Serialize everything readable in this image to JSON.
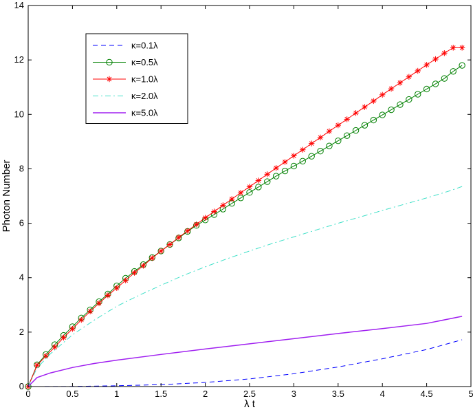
{
  "chart_data": {
    "type": "line",
    "title": "",
    "xlabel": "λ t",
    "ylabel": "Photon Number",
    "xlim": [
      0,
      5
    ],
    "ylim": [
      0,
      14
    ],
    "xticks": [
      "0",
      "0.5",
      "1",
      "1.5",
      "2",
      "2.5",
      "3",
      "3.5",
      "4",
      "4.5",
      "5"
    ],
    "yticks": [
      "0",
      "2",
      "4",
      "6",
      "8",
      "10",
      "12",
      "14"
    ],
    "grid": false,
    "legend_position": "top-left",
    "series": [
      {
        "name": "κ=0.1λ",
        "color": "#0000ff",
        "style": "dashed",
        "marker": "none",
        "x": [
          0,
          0.5,
          1.0,
          1.5,
          2.0,
          2.5,
          3.0,
          3.5,
          4.0,
          4.5,
          4.9
        ],
        "y": [
          0,
          0.005,
          0.03,
          0.07,
          0.15,
          0.28,
          0.47,
          0.72,
          1.02,
          1.36,
          1.72
        ]
      },
      {
        "name": "κ=0.5λ",
        "color": "#008000",
        "style": "solid",
        "marker": "circle",
        "x": [
          0,
          0.1,
          0.2,
          0.3,
          0.4,
          0.5,
          0.6,
          0.7,
          0.8,
          0.9,
          1.0,
          1.1,
          1.2,
          1.3,
          1.4,
          1.5,
          1.6,
          1.7,
          1.8,
          1.9,
          2.0,
          2.1,
          2.2,
          2.3,
          2.4,
          2.5,
          2.6,
          2.7,
          2.8,
          2.9,
          3.0,
          3.1,
          3.2,
          3.3,
          3.4,
          3.5,
          3.6,
          3.7,
          3.8,
          3.9,
          4.0,
          4.1,
          4.2,
          4.3,
          4.4,
          4.5,
          4.6,
          4.7,
          4.8,
          4.9
        ],
        "y": [
          0,
          0.8,
          1.18,
          1.54,
          1.88,
          2.2,
          2.52,
          2.82,
          3.12,
          3.4,
          3.7,
          3.98,
          4.23,
          4.48,
          4.74,
          4.98,
          5.22,
          5.46,
          5.7,
          5.92,
          6.12,
          6.32,
          6.52,
          6.73,
          6.93,
          7.13,
          7.33,
          7.53,
          7.73,
          7.92,
          8.1,
          8.28,
          8.46,
          8.65,
          8.84,
          9.03,
          9.22,
          9.41,
          9.6,
          9.79,
          9.98,
          10.17,
          10.36,
          10.55,
          10.74,
          10.93,
          11.12,
          11.32,
          11.58,
          11.8
        ]
      },
      {
        "name": "κ=1.0λ",
        "color": "#ff0000",
        "style": "solid",
        "marker": "star",
        "x": [
          0,
          0.1,
          0.2,
          0.3,
          0.4,
          0.5,
          0.6,
          0.7,
          0.8,
          0.9,
          1.0,
          1.1,
          1.2,
          1.3,
          1.4,
          1.5,
          1.6,
          1.7,
          1.8,
          1.9,
          2.0,
          2.1,
          2.2,
          2.3,
          2.4,
          2.5,
          2.6,
          2.7,
          2.8,
          2.9,
          3.0,
          3.1,
          3.2,
          3.3,
          3.4,
          3.5,
          3.6,
          3.7,
          3.8,
          3.9,
          4.0,
          4.1,
          4.2,
          4.3,
          4.4,
          4.5,
          4.6,
          4.7,
          4.8,
          4.9
        ],
        "y": [
          0,
          0.78,
          1.12,
          1.45,
          1.8,
          2.12,
          2.45,
          2.76,
          3.06,
          3.35,
          3.62,
          3.9,
          4.18,
          4.44,
          4.72,
          4.98,
          5.22,
          5.48,
          5.72,
          5.96,
          6.2,
          6.43,
          6.66,
          6.89,
          7.12,
          7.34,
          7.57,
          7.8,
          8.03,
          8.25,
          8.48,
          8.7,
          8.93,
          9.15,
          9.38,
          9.6,
          9.82,
          10.05,
          10.27,
          10.49,
          10.72,
          10.94,
          11.16,
          11.38,
          11.6,
          11.82,
          12.03,
          12.25,
          12.45,
          12.45
        ]
      },
      {
        "name": "κ=2.0λ",
        "color": "#40e0c8",
        "style": "dashdot",
        "marker": "none",
        "x": [
          0,
          0.1,
          0.25,
          0.5,
          0.75,
          1.0,
          1.25,
          1.5,
          1.75,
          2.0,
          2.25,
          2.5,
          2.75,
          3.0,
          3.25,
          3.5,
          3.75,
          4.0,
          4.25,
          4.5,
          4.75,
          4.9
        ],
        "y": [
          0,
          0.68,
          1.2,
          1.9,
          2.45,
          2.95,
          3.35,
          3.72,
          4.08,
          4.4,
          4.7,
          4.98,
          5.25,
          5.5,
          5.75,
          6.0,
          6.23,
          6.47,
          6.7,
          6.93,
          7.18,
          7.35
        ]
      },
      {
        "name": "κ=5.0λ",
        "color": "#a020f0",
        "style": "solid",
        "marker": "none",
        "x": [
          0,
          0.1,
          0.25,
          0.5,
          0.75,
          1.0,
          1.5,
          2.0,
          2.5,
          3.0,
          3.5,
          4.0,
          4.5,
          4.9
        ],
        "y": [
          0,
          0.33,
          0.5,
          0.7,
          0.85,
          0.97,
          1.18,
          1.38,
          1.57,
          1.76,
          1.95,
          2.13,
          2.32,
          2.58
        ]
      }
    ]
  }
}
